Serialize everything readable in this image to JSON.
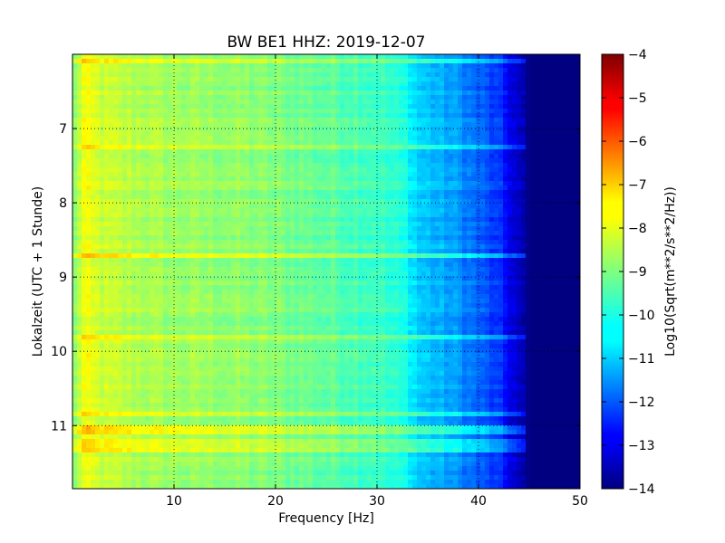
{
  "chart_data": {
    "type": "heatmap",
    "title": "BW BE1 HHZ: 2019-12-07",
    "xlabel": "Frequency [Hz]",
    "ylabel": "Lokalzeit (UTC + 1 Stunde)",
    "xlim": [
      0,
      50
    ],
    "ylim": [
      11.85,
      6.0
    ],
    "x_ticks": [
      10,
      20,
      30,
      40,
      50
    ],
    "y_ticks": [
      7,
      8,
      9,
      10,
      11
    ],
    "grid": true,
    "colormap": "jet",
    "colorbar": {
      "label": "Log10(Sqrt(m**2/s**2/Hz))",
      "range": [
        -14,
        -4
      ],
      "ticks": [
        -14,
        -13,
        -12,
        -11,
        -10,
        -9,
        -8,
        -7,
        -6,
        -5,
        -4
      ]
    },
    "spectral_profile": {
      "frequency_hz": [
        0,
        1,
        3,
        6,
        10,
        15,
        20,
        25,
        30,
        33,
        34,
        38,
        42,
        44,
        45,
        50
      ],
      "log_amplitude": [
        -9.2,
        -7.9,
        -8.3,
        -8.5,
        -8.7,
        -8.8,
        -9.0,
        -9.3,
        -9.6,
        -10.1,
        -10.7,
        -11.3,
        -12.3,
        -13.4,
        -14,
        -14
      ]
    },
    "energetic_bands_local_time": [
      6.1,
      7.25,
      8.7,
      9.8,
      10.85,
      11.05,
      11.2,
      11.3
    ]
  }
}
